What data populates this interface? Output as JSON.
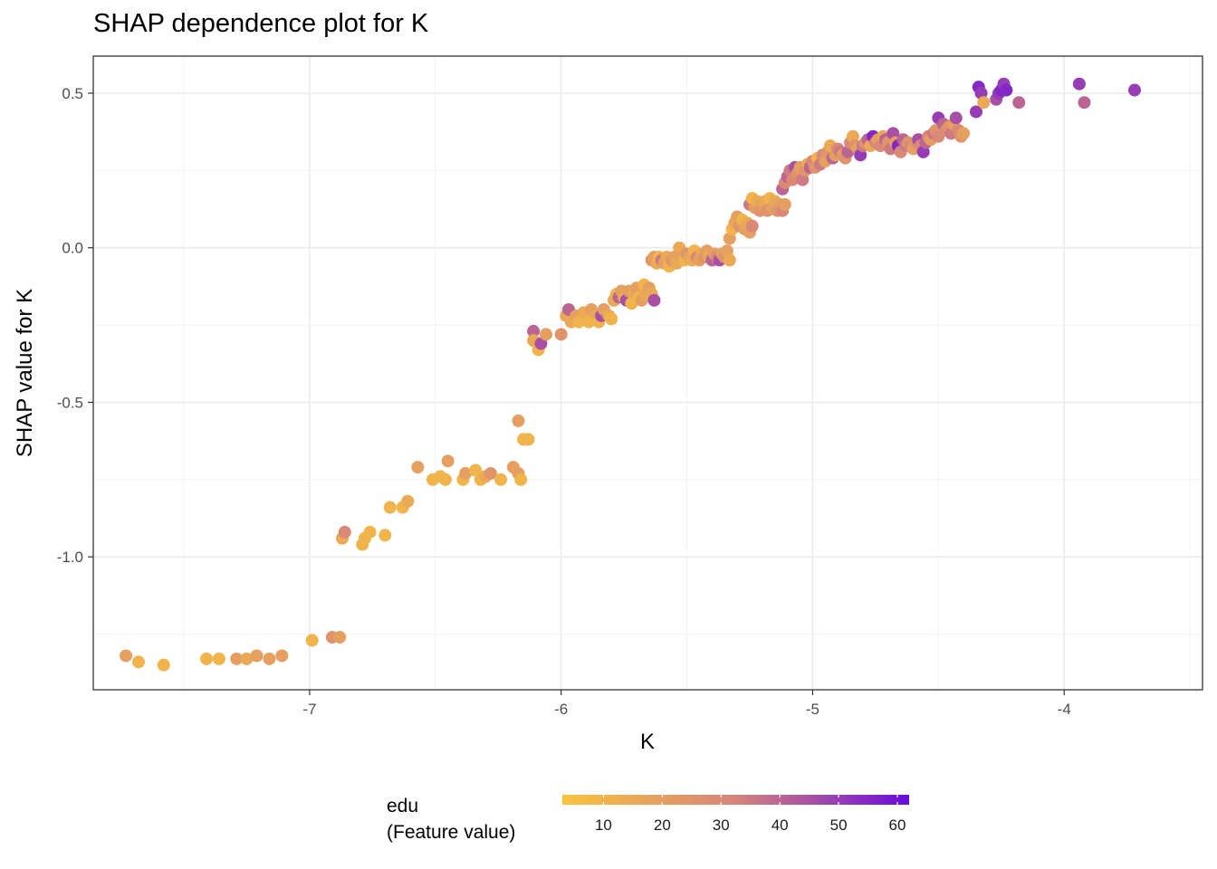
{
  "chart_data": {
    "type": "scatter",
    "title": "SHAP dependence plot for K",
    "xlabel": "K",
    "ylabel": "SHAP value for K",
    "xlim": [
      -7.86,
      -3.45
    ],
    "ylim": [
      -1.43,
      0.62
    ],
    "x_ticks": [
      -7,
      -6,
      -5,
      -4
    ],
    "x_tick_labels": [
      "-7",
      "-6",
      "-5",
      "-4"
    ],
    "y_ticks": [
      -1.0,
      -0.5,
      0.0,
      0.5
    ],
    "y_tick_labels": [
      "-1.0",
      "-0.5",
      "0.0",
      "0.5"
    ],
    "grid": true,
    "legend": {
      "title_line1": "edu",
      "title_line2": "(Feature value)",
      "placement": "bottom",
      "range": [
        3,
        62
      ],
      "ticks": [
        10,
        20,
        30,
        40,
        50,
        60
      ],
      "tick_labels": [
        "10",
        "20",
        "30",
        "40",
        "50",
        "60"
      ],
      "color_low": "#F9C33E",
      "color_mid": "#D6847A",
      "color_high": "#6A0BDC"
    },
    "points": [
      [
        -7.73,
        -1.32,
        20
      ],
      [
        -7.68,
        -1.34,
        10
      ],
      [
        -7.58,
        -1.35,
        10
      ],
      [
        -7.41,
        -1.33,
        10
      ],
      [
        -7.36,
        -1.33,
        10
      ],
      [
        -7.29,
        -1.33,
        20
      ],
      [
        -7.25,
        -1.33,
        15
      ],
      [
        -7.21,
        -1.32,
        20
      ],
      [
        -7.16,
        -1.33,
        20
      ],
      [
        -7.11,
        -1.32,
        20
      ],
      [
        -6.99,
        -1.27,
        10
      ],
      [
        -6.91,
        -1.26,
        25
      ],
      [
        -6.88,
        -1.26,
        20
      ],
      [
        -6.87,
        -0.94,
        15
      ],
      [
        -6.86,
        -0.92,
        30
      ],
      [
        -6.79,
        -0.96,
        10
      ],
      [
        -6.78,
        -0.94,
        10
      ],
      [
        -6.76,
        -0.92,
        10
      ],
      [
        -6.7,
        -0.93,
        10
      ],
      [
        -6.68,
        -0.84,
        10
      ],
      [
        -6.63,
        -0.84,
        10
      ],
      [
        -6.61,
        -0.82,
        15
      ],
      [
        -6.57,
        -0.71,
        20
      ],
      [
        -6.51,
        -0.75,
        10
      ],
      [
        -6.48,
        -0.74,
        10
      ],
      [
        -6.46,
        -0.75,
        10
      ],
      [
        -6.45,
        -0.69,
        20
      ],
      [
        -6.39,
        -0.75,
        10
      ],
      [
        -6.38,
        -0.73,
        20
      ],
      [
        -6.34,
        -0.72,
        10
      ],
      [
        -6.32,
        -0.75,
        10
      ],
      [
        -6.3,
        -0.74,
        15
      ],
      [
        -6.28,
        -0.73,
        25
      ],
      [
        -6.24,
        -0.75,
        10
      ],
      [
        -6.19,
        -0.71,
        20
      ],
      [
        -6.17,
        -0.73,
        20
      ],
      [
        -6.16,
        -0.75,
        10
      ],
      [
        -6.17,
        -0.56,
        20
      ],
      [
        -6.15,
        -0.62,
        10
      ],
      [
        -6.13,
        -0.62,
        10
      ],
      [
        -6.11,
        -0.27,
        40
      ],
      [
        -6.11,
        -0.3,
        15
      ],
      [
        -6.09,
        -0.33,
        10
      ],
      [
        -6.08,
        -0.31,
        45
      ],
      [
        -6.06,
        -0.28,
        20
      ],
      [
        -6.0,
        -0.28,
        25
      ],
      [
        -5.98,
        -0.22,
        15
      ],
      [
        -5.97,
        -0.2,
        40
      ],
      [
        -5.96,
        -0.24,
        15
      ],
      [
        -5.94,
        -0.22,
        20
      ],
      [
        -5.93,
        -0.24,
        10
      ],
      [
        -5.91,
        -0.21,
        15
      ],
      [
        -5.89,
        -0.24,
        10
      ],
      [
        -5.88,
        -0.2,
        20
      ],
      [
        -5.86,
        -0.22,
        15
      ],
      [
        -5.85,
        -0.24,
        10
      ],
      [
        -5.84,
        -0.22,
        45
      ],
      [
        -5.83,
        -0.2,
        20
      ],
      [
        -5.81,
        -0.22,
        15
      ],
      [
        -5.8,
        -0.23,
        10
      ],
      [
        -5.79,
        -0.17,
        15
      ],
      [
        -5.78,
        -0.15,
        10
      ],
      [
        -5.77,
        -0.16,
        40
      ],
      [
        -5.76,
        -0.14,
        20
      ],
      [
        -5.75,
        -0.16,
        15
      ],
      [
        -5.74,
        -0.17,
        45
      ],
      [
        -5.73,
        -0.14,
        20
      ],
      [
        -5.72,
        -0.18,
        10
      ],
      [
        -5.71,
        -0.15,
        15
      ],
      [
        -5.7,
        -0.13,
        20
      ],
      [
        -5.69,
        -0.16,
        10
      ],
      [
        -5.68,
        -0.17,
        20
      ],
      [
        -5.67,
        -0.12,
        10
      ],
      [
        -5.66,
        -0.15,
        15
      ],
      [
        -5.65,
        -0.13,
        20
      ],
      [
        -5.64,
        -0.15,
        15
      ],
      [
        -5.63,
        -0.17,
        45
      ],
      [
        -5.64,
        -0.04,
        25
      ],
      [
        -5.63,
        -0.03,
        20
      ],
      [
        -5.62,
        -0.05,
        15
      ],
      [
        -5.61,
        -0.03,
        10
      ],
      [
        -5.6,
        -0.04,
        35
      ],
      [
        -5.59,
        -0.05,
        20
      ],
      [
        -5.58,
        -0.03,
        15
      ],
      [
        -5.57,
        -0.06,
        10
      ],
      [
        -5.56,
        -0.04,
        25
      ],
      [
        -5.55,
        -0.03,
        20
      ],
      [
        -5.54,
        -0.05,
        15
      ],
      [
        -5.53,
        0.0,
        15
      ],
      [
        -5.52,
        -0.03,
        20
      ],
      [
        -5.51,
        -0.04,
        10
      ],
      [
        -5.5,
        -0.02,
        25
      ],
      [
        -5.49,
        -0.03,
        20
      ],
      [
        -5.48,
        -0.04,
        15
      ],
      [
        -5.47,
        -0.01,
        10
      ],
      [
        -5.46,
        -0.03,
        30
      ],
      [
        -5.45,
        -0.04,
        20
      ],
      [
        -5.44,
        -0.02,
        15
      ],
      [
        -5.43,
        -0.03,
        25
      ],
      [
        -5.42,
        -0.01,
        20
      ],
      [
        -5.41,
        -0.03,
        15
      ],
      [
        -5.4,
        -0.04,
        40
      ],
      [
        -5.39,
        -0.02,
        20
      ],
      [
        -5.38,
        -0.03,
        30
      ],
      [
        -5.37,
        -0.04,
        45
      ],
      [
        -5.36,
        -0.02,
        20
      ],
      [
        -5.35,
        -0.03,
        25
      ],
      [
        -5.34,
        -0.01,
        20
      ],
      [
        -5.33,
        -0.04,
        15
      ],
      [
        -5.33,
        0.03,
        20
      ],
      [
        -5.32,
        0.06,
        10
      ],
      [
        -5.31,
        0.08,
        15
      ],
      [
        -5.3,
        0.1,
        20
      ],
      [
        -5.29,
        0.07,
        25
      ],
      [
        -5.28,
        0.09,
        10
      ],
      [
        -5.27,
        0.06,
        20
      ],
      [
        -5.26,
        0.08,
        15
      ],
      [
        -5.25,
        0.05,
        20
      ],
      [
        -5.24,
        0.07,
        30
      ],
      [
        -5.25,
        0.14,
        35
      ],
      [
        -5.24,
        0.16,
        10
      ],
      [
        -5.23,
        0.13,
        20
      ],
      [
        -5.22,
        0.15,
        15
      ],
      [
        -5.21,
        0.12,
        25
      ],
      [
        -5.2,
        0.14,
        20
      ],
      [
        -5.19,
        0.15,
        15
      ],
      [
        -5.18,
        0.12,
        25
      ],
      [
        -5.17,
        0.16,
        10
      ],
      [
        -5.16,
        0.13,
        20
      ],
      [
        -5.15,
        0.15,
        15
      ],
      [
        -5.14,
        0.12,
        25
      ],
      [
        -5.13,
        0.14,
        20
      ],
      [
        -5.12,
        0.12,
        30
      ],
      [
        -5.11,
        0.14,
        20
      ],
      [
        -5.12,
        0.19,
        40
      ],
      [
        -5.11,
        0.21,
        30
      ],
      [
        -5.1,
        0.23,
        40
      ],
      [
        -5.09,
        0.25,
        35
      ],
      [
        -5.08,
        0.22,
        30
      ],
      [
        -5.07,
        0.26,
        45
      ],
      [
        -5.06,
        0.24,
        25
      ],
      [
        -5.05,
        0.26,
        20
      ],
      [
        -5.04,
        0.22,
        35
      ],
      [
        -5.03,
        0.25,
        25
      ],
      [
        -5.02,
        0.27,
        15
      ],
      [
        -5.01,
        0.26,
        40
      ],
      [
        -5.0,
        0.28,
        30
      ],
      [
        -4.99,
        0.26,
        25
      ],
      [
        -4.98,
        0.29,
        10
      ],
      [
        -4.97,
        0.27,
        35
      ],
      [
        -4.96,
        0.3,
        30
      ],
      [
        -4.95,
        0.28,
        20
      ],
      [
        -4.94,
        0.31,
        25
      ],
      [
        -4.93,
        0.33,
        15
      ],
      [
        -4.92,
        0.29,
        40
      ],
      [
        -4.91,
        0.3,
        20
      ],
      [
        -4.9,
        0.32,
        30
      ],
      [
        -4.89,
        0.31,
        35
      ],
      [
        -4.88,
        0.3,
        20
      ],
      [
        -4.87,
        0.29,
        25
      ],
      [
        -4.86,
        0.31,
        40
      ],
      [
        -4.85,
        0.34,
        30
      ],
      [
        -4.84,
        0.36,
        15
      ],
      [
        -4.83,
        0.33,
        25
      ],
      [
        -4.82,
        0.32,
        20
      ],
      [
        -4.81,
        0.3,
        50
      ],
      [
        -4.8,
        0.33,
        35
      ],
      [
        -4.79,
        0.34,
        25
      ],
      [
        -4.78,
        0.35,
        40
      ],
      [
        -4.77,
        0.33,
        15
      ],
      [
        -4.76,
        0.36,
        55
      ],
      [
        -4.75,
        0.34,
        30
      ],
      [
        -4.74,
        0.35,
        20
      ],
      [
        -4.73,
        0.33,
        30
      ],
      [
        -4.72,
        0.36,
        15
      ],
      [
        -4.71,
        0.35,
        40
      ],
      [
        -4.7,
        0.34,
        25
      ],
      [
        -4.69,
        0.32,
        35
      ],
      [
        -4.68,
        0.37,
        45
      ],
      [
        -4.67,
        0.34,
        20
      ],
      [
        -4.66,
        0.33,
        55
      ],
      [
        -4.65,
        0.31,
        30
      ],
      [
        -4.64,
        0.35,
        40
      ],
      [
        -4.63,
        0.33,
        35
      ],
      [
        -4.62,
        0.34,
        25
      ],
      [
        -4.61,
        0.33,
        30
      ],
      [
        -4.6,
        0.32,
        20
      ],
      [
        -4.59,
        0.34,
        25
      ],
      [
        -4.58,
        0.35,
        45
      ],
      [
        -4.57,
        0.33,
        30
      ],
      [
        -4.56,
        0.31,
        50
      ],
      [
        -4.55,
        0.34,
        40
      ],
      [
        -4.54,
        0.36,
        30
      ],
      [
        -4.53,
        0.35,
        20
      ],
      [
        -4.52,
        0.37,
        35
      ],
      [
        -4.51,
        0.38,
        25
      ],
      [
        -4.5,
        0.36,
        30
      ],
      [
        -4.5,
        0.42,
        50
      ],
      [
        -4.48,
        0.4,
        40
      ],
      [
        -4.47,
        0.38,
        30
      ],
      [
        -4.46,
        0.39,
        25
      ],
      [
        -4.45,
        0.37,
        35
      ],
      [
        -4.44,
        0.4,
        20
      ],
      [
        -4.43,
        0.42,
        45
      ],
      [
        -4.42,
        0.38,
        30
      ],
      [
        -4.41,
        0.36,
        25
      ],
      [
        -4.4,
        0.37,
        20
      ],
      [
        -4.35,
        0.44,
        50
      ],
      [
        -4.34,
        0.52,
        55
      ],
      [
        -4.33,
        0.5,
        50
      ],
      [
        -4.32,
        0.47,
        15
      ],
      [
        -4.27,
        0.48,
        45
      ],
      [
        -4.26,
        0.5,
        50
      ],
      [
        -4.25,
        0.51,
        55
      ],
      [
        -4.24,
        0.53,
        50
      ],
      [
        -4.23,
        0.51,
        55
      ],
      [
        -4.18,
        0.47,
        40
      ],
      [
        -3.94,
        0.53,
        50
      ],
      [
        -3.92,
        0.47,
        40
      ],
      [
        -3.72,
        0.51,
        50
      ]
    ]
  }
}
